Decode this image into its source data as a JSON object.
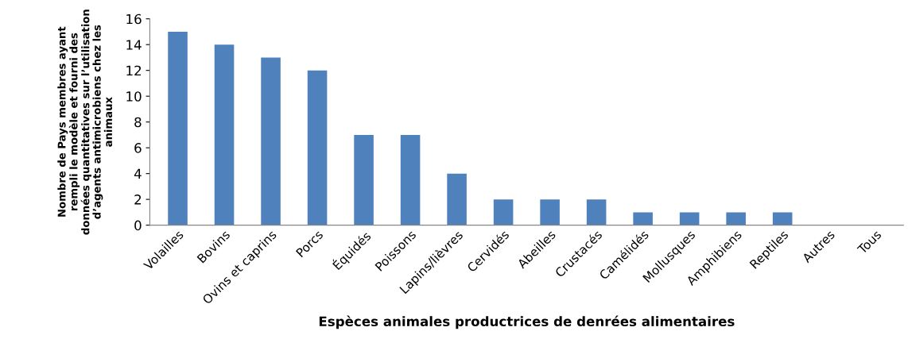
{
  "chart_data": {
    "type": "bar",
    "categories": [
      "Volailles",
      "Bovins",
      "Ovins et caprins",
      "Porcs",
      "Équidés",
      "Poissons",
      "Lapins/lièvres",
      "Cervidés",
      "Abeilles",
      "Crustacés",
      "Camélidés",
      "Mollusques",
      "Amphibiens",
      "Reptiles",
      "Autres",
      "Tous"
    ],
    "values": [
      15,
      14,
      13,
      12,
      7,
      7,
      4,
      2,
      2,
      2,
      1,
      1,
      1,
      1,
      0,
      0
    ],
    "color": "#4f81bd",
    "ylim": [
      0,
      16
    ],
    "yticks": [
      0,
      2,
      4,
      6,
      8,
      10,
      12,
      14,
      16
    ],
    "xlabel": "Espèces animales productrices de denrées alimentaires",
    "ylabel": "Nombre de Pays membres ayant\nrempli le modèle et fourni des\ndonnées quantitatives sur l’utilisation\nd’agents antimicrobiens chez les\nanimaux",
    "grid": false,
    "legend": false
  }
}
